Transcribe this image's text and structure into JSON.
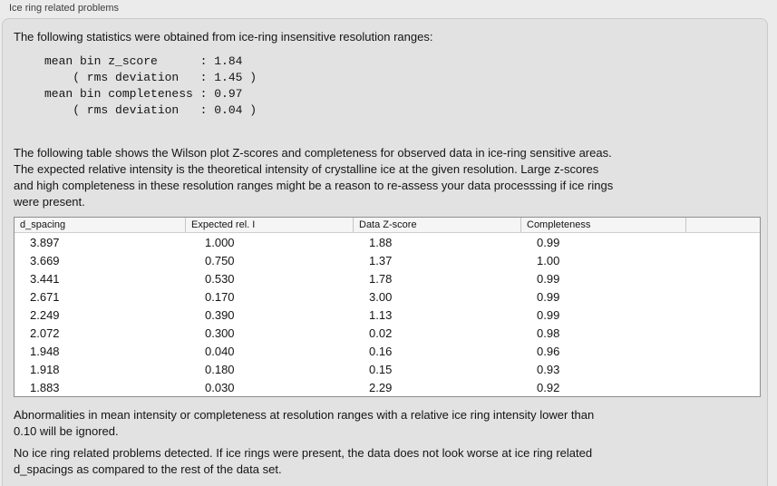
{
  "window": {
    "title": "Ice ring related problems"
  },
  "panel": {
    "stats_intro": "The following statistics were obtained from ice-ring insensitive resolution ranges:",
    "stats_block": "mean bin z_score      : 1.84\n    ( rms deviation   : 1.45 )\nmean bin completeness : 0.97\n    ( rms deviation   : 0.04 )",
    "stats_values": {
      "mean_bin_z_score": "1.84",
      "z_score_rms_deviation": "1.45",
      "mean_bin_completeness": "0.97",
      "completeness_rms_deviation": "0.04"
    },
    "table_intro": "The following table shows the Wilson plot Z-scores and completeness for observed data in ice-ring sensitive areas.\nThe expected relative intensity is the theoretical intensity of crystalline ice at the given resolution. Large z-scores\nand high completeness in these resolution ranges might be a reason to re-assess your data processsing if ice rings\nwere present.",
    "note_ignore": "Abnormalities in mean intensity or completeness at resolution ranges with a relative ice ring intensity lower than\n0.10 will be ignored.",
    "conclusion": "No ice ring related problems detected. If ice rings were present, the data does not look worse at ice ring related\nd_spacings as compared to the rest of the data set."
  },
  "table": {
    "columns": [
      "d_spacing",
      "Expected rel. I",
      "Data Z-score",
      "Completeness"
    ],
    "rows": [
      [
        "3.897",
        "1.000",
        "1.88",
        "0.99"
      ],
      [
        "3.669",
        "0.750",
        "1.37",
        "1.00"
      ],
      [
        "3.441",
        "0.530",
        "1.78",
        "0.99"
      ],
      [
        "2.671",
        "0.170",
        "3.00",
        "0.99"
      ],
      [
        "2.249",
        "0.390",
        "1.13",
        "0.99"
      ],
      [
        "2.072",
        "0.300",
        "0.02",
        "0.98"
      ],
      [
        "1.948",
        "0.040",
        "0.16",
        "0.96"
      ],
      [
        "1.918",
        "0.180",
        "0.15",
        "0.93"
      ],
      [
        "1.883",
        "0.030",
        "2.29",
        "0.92"
      ]
    ]
  },
  "colors": {
    "page-bg": "#ebebeb",
    "box-bg": "#e2e2e2",
    "box-border": "#c9c9c9",
    "title-color": "#3c3c3c",
    "text-color": "#141414",
    "table-border": "#8f8f8f",
    "header-bg": "#f5f5f5",
    "header-sep": "#c6c6c6",
    "header-divider": "#cfcfcf",
    "body-bg": "#ffffff"
  }
}
